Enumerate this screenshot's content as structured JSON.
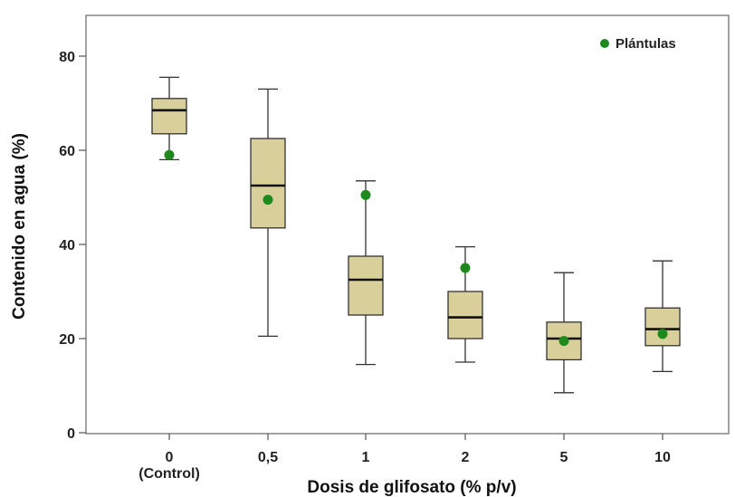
{
  "chart_data": {
    "type": "boxplot",
    "xlabel": "Dosis de glifosato (% p/v)",
    "ylabel": "Contenido en agua (%)",
    "ylim": [
      0,
      88
    ],
    "yticks": [
      0,
      20,
      40,
      60,
      80
    ],
    "categories": [
      {
        "label": "0",
        "sublabel": "(Control)"
      },
      {
        "label": "0,5",
        "sublabel": ""
      },
      {
        "label": "1",
        "sublabel": ""
      },
      {
        "label": "2",
        "sublabel": ""
      },
      {
        "label": "5",
        "sublabel": ""
      },
      {
        "label": "10",
        "sublabel": ""
      }
    ],
    "boxes": [
      {
        "min": 58,
        "q1": 63.5,
        "median": 68.5,
        "q3": 71,
        "max": 75.5
      },
      {
        "min": 20.5,
        "q1": 43.5,
        "median": 52.5,
        "q3": 62.5,
        "max": 73
      },
      {
        "min": 14.5,
        "q1": 25,
        "median": 32.5,
        "q3": 37.5,
        "max": 53.5
      },
      {
        "min": 15,
        "q1": 20,
        "median": 24.5,
        "q3": 30,
        "max": 39.5
      },
      {
        "min": 8.5,
        "q1": 15.5,
        "median": 20,
        "q3": 23.5,
        "max": 34
      },
      {
        "min": 13,
        "q1": 18.5,
        "median": 22,
        "q3": 26.5,
        "max": 36.5
      }
    ],
    "points_series": {
      "name": "Plántulas",
      "values": [
        59,
        49.5,
        50.5,
        35,
        19.5,
        21
      ],
      "color": "#1e8a1e"
    },
    "box_fill": "#d8cf9a",
    "box_stroke": "#333333",
    "legend_position": "top-right",
    "grid": false
  }
}
